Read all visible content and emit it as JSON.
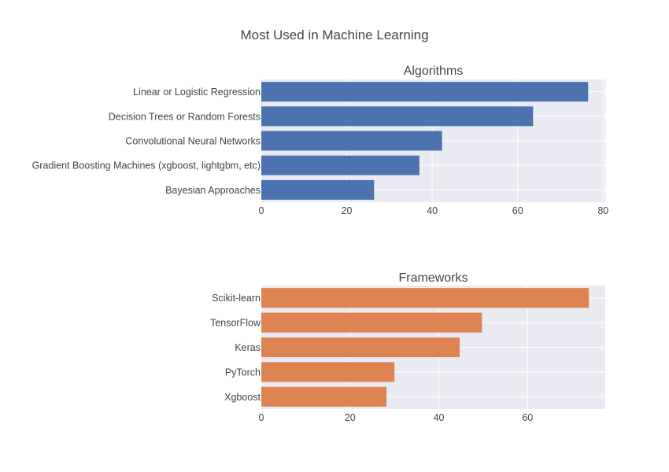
{
  "chart_data": [
    {
      "type": "bar",
      "orientation": "horizontal",
      "title": "Algorithms",
      "categories": [
        "Linear or Logistic Regression",
        "Decision Trees or Random Forests",
        "Convolutional Neural Networks",
        "Gradient Boosting Machines (xgboost, lightgbm, etc)",
        "Bayesian Approaches"
      ],
      "values": [
        76.5,
        63.6,
        42.3,
        37.0,
        26.4
      ],
      "xlim": [
        0,
        80.5
      ],
      "xticks": [
        0,
        20,
        40,
        60,
        80
      ],
      "grid": true,
      "color": "#4C72B0"
    },
    {
      "type": "bar",
      "orientation": "horizontal",
      "title": "Frameworks",
      "categories": [
        "Scikit-learn",
        "TensorFlow",
        "Keras",
        "PyTorch",
        "Xgboost"
      ],
      "values": [
        73.8,
        49.7,
        44.7,
        30.0,
        28.2
      ],
      "xlim": [
        0,
        77.5
      ],
      "xticks": [
        0,
        20,
        40,
        60
      ],
      "grid": true,
      "color": "#DD8452"
    }
  ],
  "figure": {
    "title": "Most Used in Machine Learning",
    "plot_background": "#EAEAF2",
    "grid_color": "#FFFFFF",
    "text_color": "#444444"
  }
}
